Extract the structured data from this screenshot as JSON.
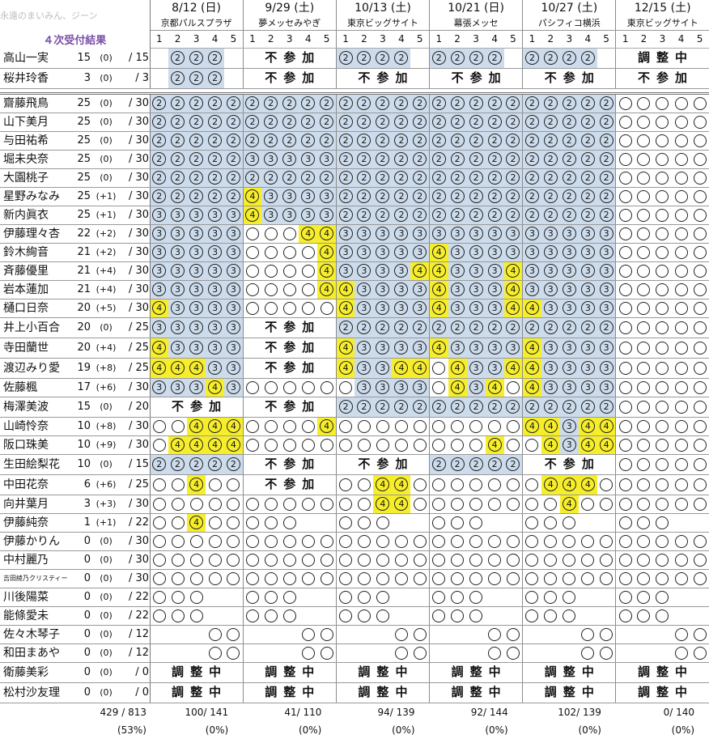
{
  "watermark": "永遠のまいみん、ジーン",
  "title": "４次受付結果",
  "events": [
    {
      "date": "8/12 (日)",
      "venue": "京都パルスプラザ",
      "total": "100/ 141",
      "pct": "(0%)"
    },
    {
      "date": "9/29 (土)",
      "venue": "夢メッセみやぎ",
      "total": "41/ 110",
      "pct": "(0%)"
    },
    {
      "date": "10/13 (土)",
      "venue": "東京ビッグサイト",
      "total": "94/ 139",
      "pct": "(0%)"
    },
    {
      "date": "10/21 (日)",
      "venue": "幕張メッセ",
      "total": "92/ 144",
      "pct": "(0%)"
    },
    {
      "date": "10/27 (土)",
      "venue": "パシフィコ横浜",
      "total": "102/ 139",
      "pct": "(0%)"
    },
    {
      "date": "12/15 (土)",
      "venue": "東京ビッグサイト",
      "total": "0/ 140",
      "pct": "(0%)"
    }
  ],
  "slot_numbers": [
    "1",
    "2",
    "3",
    "4",
    "5"
  ],
  "footer": {
    "total": "429 / 813",
    "pct": "(53%)"
  },
  "legend_kanji": {
    "fu": "不",
    "san": "参",
    "ka": "加",
    "cho": "調",
    "sei": "整",
    "chu": "中"
  },
  "grads": [
    {
      "name": "高山一実",
      "a": "15",
      "b": "(0)",
      "c": "/ 15",
      "cells": "_FFF_ | _XYZ_ | FFFF_ | FFFF_ | FFFF_ | _UVW_"
    },
    {
      "name": "桜井玲香",
      "a": "3",
      "b": "(0)",
      "c": "/ 3",
      "cells": "_FFF_ | _XYZ_ | _XYZ_ | _XYZ_ | _XYZ_ | _XYZ_"
    }
  ],
  "members": [
    {
      "name": "齋藤飛鳥",
      "a": "25",
      "b": "(0)",
      "c": "/ 30",
      "cells": "22222|22222|22222|22222|22222|ooooo"
    },
    {
      "name": "山下美月",
      "a": "25",
      "b": "(0)",
      "c": "/ 30",
      "cells": "22222|22222|22222|22222|22222|ooooo"
    },
    {
      "name": "与田祐希",
      "a": "25",
      "b": "(0)",
      "c": "/ 30",
      "cells": "22222|22222|22222|22222|22222|ooooo"
    },
    {
      "name": "堀未央奈",
      "a": "25",
      "b": "(0)",
      "c": "/ 30",
      "cells": "22222|33333|22222|22222|22222|ooooo"
    },
    {
      "name": "大園桃子",
      "a": "25",
      "b": "(0)",
      "c": "/ 30",
      "cells": "22222|22222|22222|22222|22222|ooooo"
    },
    {
      "name": "星野みなみ",
      "a": "25",
      "b": "(+1)",
      "c": "/ 30",
      "cells": "22222|Y3333|22222|22222|22222|ooooo"
    },
    {
      "name": "新内眞衣",
      "a": "25",
      "b": "(+1)",
      "c": "/ 30",
      "cells": "33333|Y3333|22222|22222|22222|ooooo"
    },
    {
      "name": "伊藤理々杏",
      "a": "22",
      "b": "(+2)",
      "c": "/ 30",
      "cells": "33333|oooYY|33333|33333|33333|ooooo"
    },
    {
      "name": "鈴木絢音",
      "a": "21",
      "b": "(+2)",
      "c": "/ 30",
      "cells": "33333|ooooY|33333|Y3333|33333|ooooo"
    },
    {
      "name": "斉藤優里",
      "a": "21",
      "b": "(+4)",
      "c": "/ 30",
      "cells": "33333|ooooY|3333Y|Y333Y|33333|ooooo"
    },
    {
      "name": "岩本蓮加",
      "a": "21",
      "b": "(+4)",
      "c": "/ 30",
      "cells": "33333|ooooY|Y3333|Y333Y|33333|ooooo"
    },
    {
      "name": "樋口日奈",
      "a": "20",
      "b": "(+5)",
      "c": "/ 30",
      "cells": "Y3333|ooooo|Y3333|Y333Y|Y3333|ooooo"
    },
    {
      "name": "井上小百合",
      "a": "20",
      "b": "(0)",
      "c": "/ 25",
      "cells": "33333|_XYZ_|22222|22222|22222|ooooo"
    },
    {
      "name": "寺田蘭世",
      "a": "20",
      "b": "(+4)",
      "c": "/ 25",
      "cells": "Y3333|_XYZ_|Y3333|Y3333|Y3333|ooooo"
    },
    {
      "name": "渡辺みり愛",
      "a": "19",
      "b": "(+8)",
      "c": "/ 25",
      "cells": "YYY33|_XYZ_|Y33YY|oY33Y|Y3333|ooooo"
    },
    {
      "name": "佐藤楓",
      "a": "17",
      "b": "(+6)",
      "c": "/ 30",
      "cells": "333Y3|ooooo|o3333|oY3Yo|Y3333|ooooo"
    },
    {
      "name": "梅澤美波",
      "a": "15",
      "b": "(0)",
      "c": "/ 20",
      "cells": "_XYZ_|_XYZ_|22222|22222|22222|ooooo"
    },
    {
      "name": "山崎怜奈",
      "a": "10",
      "b": "(+8)",
      "c": "/ 30",
      "cells": "ooYYY|ooooY|ooooo|ooooo|YY3YY|ooooo"
    },
    {
      "name": "阪口珠美",
      "a": "10",
      "b": "(+9)",
      "c": "/ 30",
      "cells": "oYYYY|ooooo|ooooo|oooYo|oY3YY|ooooo"
    },
    {
      "name": "生田絵梨花",
      "a": "10",
      "b": "(0)",
      "c": "/ 15",
      "cells": "22222|_XYZ_|_XYZ_|22222|_XYZ_|ooooo"
    },
    {
      "name": "中田花奈",
      "a": "6",
      "b": "(+6)",
      "c": "/ 25",
      "cells": "ooYoo|_XYZ_|ooYYo|ooooo|oYYYo|ooooo"
    },
    {
      "name": "向井葉月",
      "a": "3",
      "b": "(+3)",
      "c": "/ 30",
      "cells": "ooooo|ooooo|ooYYo|ooooo|ooYoo|ooooo"
    },
    {
      "name": "伊藤純奈",
      "a": "1",
      "b": "(+1)",
      "c": "/ 22",
      "cells": "ooYoo|ooo__|ooo__|ooo__|ooo__|ooo__"
    },
    {
      "name": "伊藤かりん",
      "a": "0",
      "b": "(0)",
      "c": "/ 30",
      "cells": "ooooo|ooooo|ooooo|ooooo|ooooo|ooooo"
    },
    {
      "name": "中村麗乃",
      "a": "0",
      "b": "(0)",
      "c": "/ 30",
      "cells": "ooooo|ooooo|ooooo|ooooo|ooooo|ooooo"
    },
    {
      "name": "吉田綾乃クリスティー",
      "a": "0",
      "b": "(0)",
      "c": "/ 30",
      "tiny": true,
      "cells": "ooooo|ooooo|ooooo|ooooo|ooooo|ooooo"
    },
    {
      "name": "川後陽菜",
      "a": "0",
      "b": "(0)",
      "c": "/ 22",
      "cells": "ooo__|ooo__|ooo__|ooo__|ooo__|ooo__"
    },
    {
      "name": "能條愛未",
      "a": "0",
      "b": "(0)",
      "c": "/ 22",
      "cells": "ooo__|ooo__|ooo__|ooo__|ooo__|ooo__"
    },
    {
      "name": "佐々木琴子",
      "a": "0",
      "b": "(0)",
      "c": "/ 12",
      "cells": "___oo|___oo|___oo|___oo|___oo|___oo"
    },
    {
      "name": "和田まあや",
      "a": "0",
      "b": "(0)",
      "c": "/ 12",
      "cells": "___oo|___oo|___oo|___oo|___oo|___oo"
    },
    {
      "name": "衛藤美彩",
      "a": "0",
      "b": "(0)",
      "c": "/ 0",
      "cells": "_UVW_|_UVW_|_UVW_|_UVW_|_UVW_|_UVW_"
    },
    {
      "name": "松村沙友理",
      "a": "0",
      "b": "(0)",
      "c": "/ 0",
      "cells": "_UVW_|_UVW_|_UVW_|_UVW_|_UVW_|_UVW_"
    }
  ]
}
